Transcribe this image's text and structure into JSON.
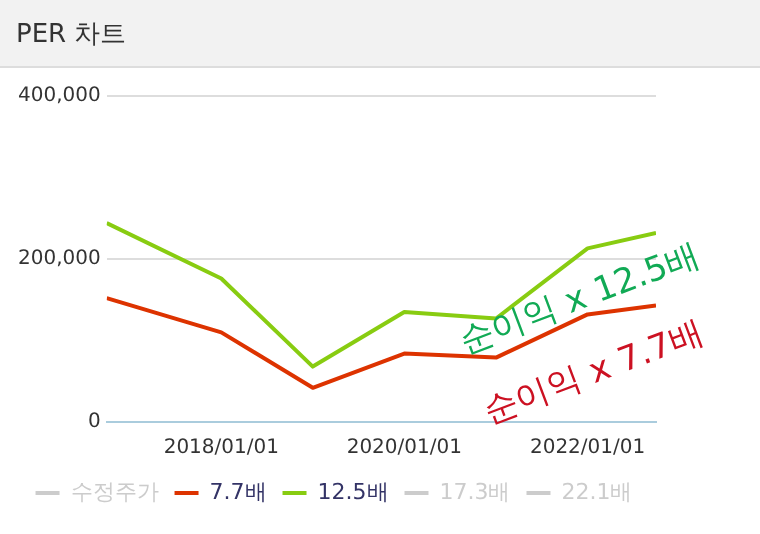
{
  "chart_data": {
    "type": "line",
    "title": "PER 차트",
    "x": [
      "2016-10-01",
      "2018-01-01",
      "2019-01-01",
      "2020-01-01",
      "2021-01-01",
      "2022-01-01",
      "2022-10-01"
    ],
    "series": [
      {
        "name": "수정주가",
        "color": "#cccccc",
        "values": [
          null,
          null,
          null,
          null,
          null,
          null,
          null
        ]
      },
      {
        "name": "7.7배",
        "color": "#dd3300",
        "values": [
          152000,
          110000,
          42000,
          84000,
          79000,
          132000,
          143000
        ]
      },
      {
        "name": "12.5배",
        "color": "#88cc11",
        "values": [
          244000,
          176000,
          68000,
          135000,
          127000,
          213000,
          232000
        ]
      },
      {
        "name": "17.3배",
        "color": "#cccccc",
        "values": [
          null,
          null,
          null,
          null,
          null,
          null,
          null
        ]
      },
      {
        "name": "22.1배",
        "color": "#cccccc",
        "values": [
          null,
          null,
          null,
          null,
          null,
          null,
          null
        ]
      }
    ],
    "xlim": [
      "2016-10-01",
      "2022-10-01"
    ],
    "xticks": [
      {
        "value": "2018-01-01",
        "label": "2018/01/01"
      },
      {
        "value": "2020-01-01",
        "label": "2020/01/01"
      },
      {
        "value": "2022-01-01",
        "label": "2022/01/01"
      }
    ],
    "ylim": [
      0,
      400000
    ],
    "yticks": [
      {
        "value": 0,
        "label": "0"
      },
      {
        "value": 200000,
        "label": "200,000"
      },
      {
        "value": 400000,
        "label": "400,000"
      }
    ],
    "annotations": [
      "순이익 x 12.5배",
      "순이익 x 7.7배"
    ],
    "grid": "y",
    "legend": "bottom",
    "marker": "none",
    "line_style": "solid"
  }
}
